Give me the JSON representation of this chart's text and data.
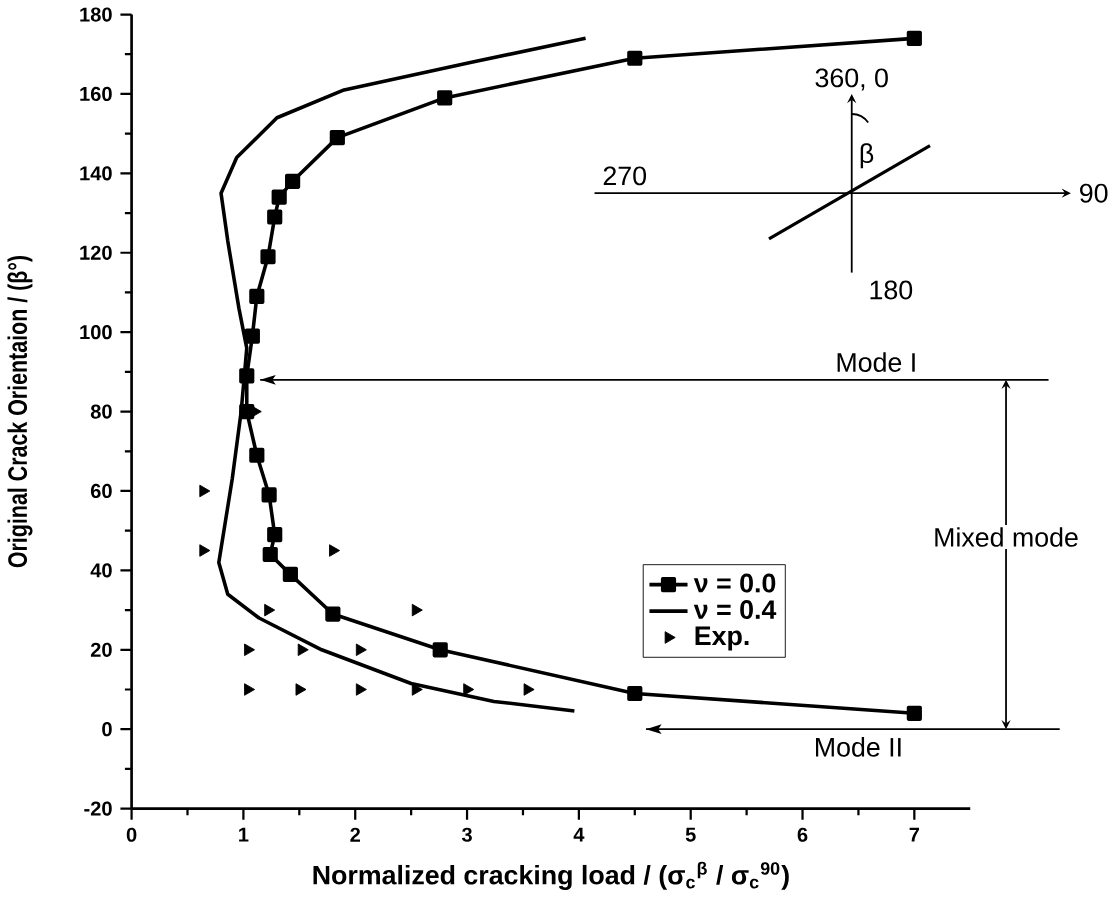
{
  "chart_data": {
    "type": "line",
    "xlabel": "Normalized cracking load / (σ$_{c}$$^{β}$ / σ$_{c}$$^{90}$)",
    "ylabel": "Original Crack Orientaion / (β°)",
    "xlim": [
      0,
      7.5
    ],
    "ylim": [
      -20,
      180
    ],
    "xticks": [
      0,
      1,
      2,
      3,
      4,
      5,
      6,
      7
    ],
    "yticks": [
      -20,
      0,
      20,
      40,
      60,
      80,
      100,
      120,
      140,
      160,
      180
    ],
    "grid": false,
    "legend": "bottom right",
    "series": [
      {
        "name": "ν = 0.0",
        "marker": "square",
        "color": "#000000",
        "x": [
          7.0,
          4.5,
          2.8,
          1.84,
          1.44,
          1.32,
          1.28,
          1.22,
          1.12,
          1.08,
          1.03,
          1.03,
          1.12,
          1.23,
          1.28,
          1.24,
          1.42,
          1.8,
          2.76,
          4.5,
          7.0
        ],
        "values": [
          174,
          169,
          159,
          149,
          138,
          134,
          129,
          119,
          109,
          99,
          89,
          80,
          69,
          59,
          49,
          44,
          39,
          29,
          20,
          9,
          4
        ]
      },
      {
        "name": "ν = 0.4",
        "marker": "none",
        "color": "#000000",
        "x": [
          4.06,
          3.04,
          1.9,
          1.3,
          0.94,
          0.8,
          0.86,
          0.96,
          1.03,
          0.98,
          0.9,
          0.78,
          0.86,
          1.14,
          1.7,
          2.5,
          3.24,
          3.96
        ],
        "values": [
          174,
          168,
          161,
          154,
          144,
          135,
          123,
          106,
          96,
          80,
          63,
          42,
          34,
          28,
          20,
          11.5,
          7,
          4.6
        ]
      },
      {
        "name": "Exp.",
        "type": "scatter",
        "marker": "triangle",
        "color": "#000000",
        "x": [
          1.1,
          0.64,
          0.64,
          1.8,
          1.22,
          2.54,
          1.04,
          1.52,
          2.04,
          1.04,
          1.5,
          2.04,
          2.54,
          3.0,
          3.54
        ],
        "values": [
          80,
          60,
          45,
          45,
          30,
          30,
          20,
          20,
          20,
          10,
          10,
          10,
          10,
          10,
          10
        ]
      }
    ],
    "ref_lines": [
      {
        "axis": "y",
        "value": 88,
        "label": "Mode I"
      },
      {
        "axis": "y",
        "value": 0,
        "label": "Mode II"
      }
    ],
    "annotations": [
      "Mixed mode",
      "360, 0",
      "270",
      "90",
      "180",
      "β"
    ]
  }
}
